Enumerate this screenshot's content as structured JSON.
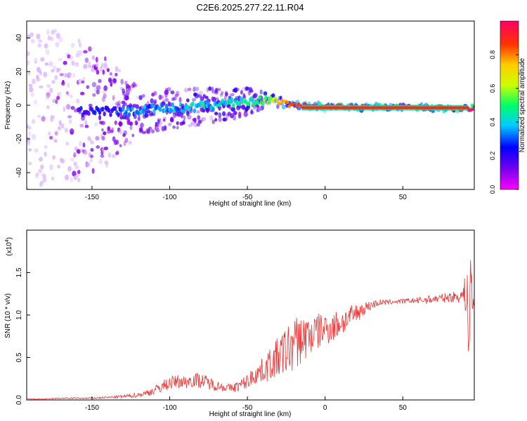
{
  "title": "C2E6.2025.277.22.11.R04",
  "colors": {
    "snr_line": "#ee3333",
    "colormap": [
      "#ff00ff",
      "#7700ee",
      "#0000ff",
      "#00ccff",
      "#00ff66",
      "#ccff00",
      "#ffcc00",
      "#ff3300",
      "#ff0066"
    ]
  },
  "chart_data": [
    {
      "type": "heatmap",
      "title": "C2E6.2025.277.22.11.R04",
      "xlabel": "Height of straight line (km)",
      "ylabel": "Frequency (Hz)",
      "xlim": [
        -192,
        96
      ],
      "ylim": [
        -50,
        50
      ],
      "x_ticks": [
        -150,
        -100,
        -50,
        0,
        50
      ],
      "y_ticks": [
        -40,
        -20,
        0,
        20,
        40
      ],
      "grid": false,
      "colorbar": {
        "label": "Normalized spectral amplitude",
        "range": [
          0,
          1
        ],
        "ticks": [
          "0.0",
          "0.2",
          "0.4",
          "0.6",
          "0.8"
        ]
      },
      "ridge": [
        {
          "x": -190,
          "f": 0,
          "amp": 0.1,
          "spread": 50
        },
        {
          "x": -150,
          "f": -4,
          "amp": 0.22,
          "spread": 40
        },
        {
          "x": -120,
          "f": -3,
          "amp": 0.3,
          "spread": 14
        },
        {
          "x": -100,
          "f": -2,
          "amp": 0.35,
          "spread": 12
        },
        {
          "x": -70,
          "f": 0,
          "amp": 0.4,
          "spread": 10
        },
        {
          "x": -50,
          "f": 2,
          "amp": 0.45,
          "spread": 8
        },
        {
          "x": -40,
          "f": 3,
          "amp": 0.5,
          "spread": 5
        },
        {
          "x": -30,
          "f": 2,
          "amp": 0.7,
          "spread": 3
        },
        {
          "x": -20,
          "f": 0,
          "amp": 0.9,
          "spread": 2
        },
        {
          "x": 0,
          "f": -1,
          "amp": 0.95,
          "spread": 2
        },
        {
          "x": 50,
          "f": -1,
          "amp": 0.98,
          "spread": 2
        },
        {
          "x": 90,
          "f": -2,
          "amp": 0.95,
          "spread": 2
        }
      ]
    },
    {
      "type": "line",
      "xlabel": "Height of straight line (km)",
      "ylabel": "SNR (10 * v/v)",
      "scale_label": "(x10",
      "scale_exp": "4",
      "scale_close": ")",
      "xlim": [
        -192,
        96
      ],
      "ylim": [
        0,
        2
      ],
      "x_ticks": [
        -150,
        -100,
        -50,
        0,
        50
      ],
      "y_ticks": [
        "0.0",
        "0.5",
        "1.0",
        "1.5"
      ],
      "grid": false,
      "series": [
        {
          "x": [
            -192,
            -180,
            -170,
            -160,
            -150,
            -140,
            -130,
            -120,
            -115,
            -110,
            -105,
            -100,
            -95,
            -90,
            -85,
            -80,
            -75,
            -70,
            -65,
            -60,
            -55,
            -50,
            -45,
            -40,
            -35,
            -30,
            -25,
            -20,
            -15,
            -10,
            -5,
            0,
            5,
            10,
            15,
            20,
            25,
            30,
            35,
            40,
            45,
            50,
            55,
            60,
            65,
            70,
            75,
            80,
            85,
            88,
            90,
            92,
            94,
            96
          ],
          "y": [
            0.01,
            0.01,
            0.02,
            0.02,
            0.02,
            0.03,
            0.04,
            0.06,
            0.08,
            0.11,
            0.16,
            0.2,
            0.22,
            0.21,
            0.24,
            0.23,
            0.2,
            0.17,
            0.15,
            0.14,
            0.17,
            0.22,
            0.3,
            0.35,
            0.43,
            0.5,
            0.58,
            0.66,
            0.72,
            0.76,
            0.8,
            0.84,
            0.86,
            0.91,
            0.96,
            1.02,
            1.08,
            1.12,
            1.15,
            1.15,
            1.16,
            1.16,
            1.17,
            1.17,
            1.18,
            1.19,
            1.2,
            1.21,
            1.22,
            1.23,
            1.25,
            1.2,
            1.15,
            1.12
          ],
          "noise": [
            0.005,
            0.005,
            0.008,
            0.008,
            0.01,
            0.012,
            0.02,
            0.03,
            0.04,
            0.05,
            0.07,
            0.08,
            0.08,
            0.08,
            0.09,
            0.09,
            0.08,
            0.06,
            0.05,
            0.05,
            0.07,
            0.09,
            0.12,
            0.15,
            0.2,
            0.25,
            0.3,
            0.32,
            0.3,
            0.26,
            0.22,
            0.2,
            0.18,
            0.17,
            0.14,
            0.12,
            0.08,
            0.05,
            0.04,
            0.03,
            0.03,
            0.03,
            0.03,
            0.04,
            0.05,
            0.05,
            0.05,
            0.06,
            0.07,
            0.09,
            0.2,
            0.3,
            0.25,
            0.1
          ]
        }
      ]
    }
  ]
}
